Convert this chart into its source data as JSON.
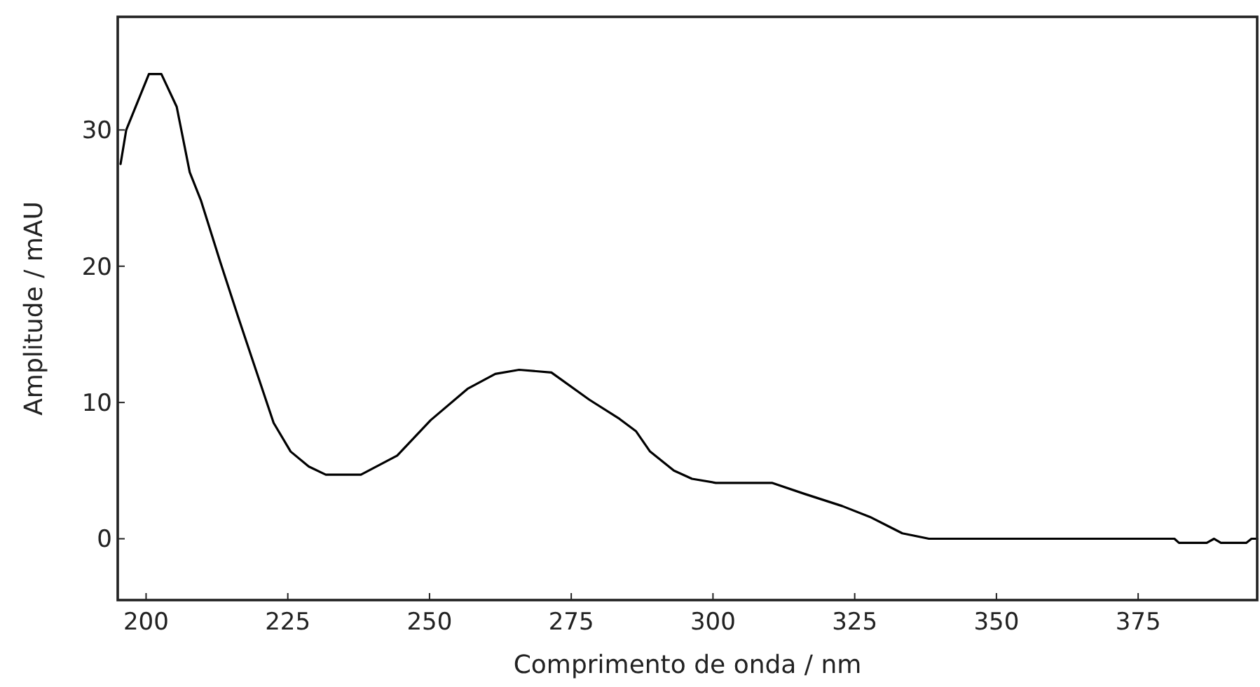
{
  "chart_data": {
    "type": "line",
    "xlabel": "Comprimento de onda / nm",
    "ylabel": "Amplitude / mAU",
    "xlim": [
      195,
      396
    ],
    "ylim": [
      -4.5,
      38.3
    ],
    "xticks": [
      200,
      225,
      250,
      275,
      300,
      325,
      350,
      375
    ],
    "yticks": [
      0,
      10,
      20,
      30
    ],
    "grid": false,
    "marker": "none",
    "line_style": "solid",
    "series": [
      {
        "color": "#000000",
        "x": [
          195.5,
          196.5,
          200.5,
          202.7,
          205.4,
          207.7,
          209.7,
          213.1,
          216.3,
          219.6,
          222.5,
          225.5,
          228.7,
          231.7,
          237.9,
          244.3,
          250.2,
          256.7,
          261.6,
          265.8,
          271.5,
          278.2,
          283.5,
          286.4,
          288.9,
          293.1,
          296.3,
          300.5,
          310.4,
          316.1,
          322.8,
          327.7,
          333.4,
          338.1,
          381.4,
          382.2,
          387.1,
          388.4,
          389.6,
          394.1,
          395.0,
          396
        ],
        "values": [
          27.5,
          30.0,
          34.1,
          34.1,
          31.7,
          26.9,
          24.8,
          20.3,
          16.2,
          12.1,
          8.5,
          6.4,
          5.3,
          4.7,
          4.7,
          6.1,
          8.7,
          11.0,
          12.1,
          12.4,
          12.2,
          10.2,
          8.8,
          7.9,
          6.4,
          5.0,
          4.4,
          4.1,
          4.1,
          3.3,
          2.4,
          1.6,
          0.4,
          0.0,
          0.0,
          -0.3,
          -0.3,
          0.0,
          -0.3,
          -0.3,
          0.0,
          0.0
        ]
      }
    ]
  }
}
